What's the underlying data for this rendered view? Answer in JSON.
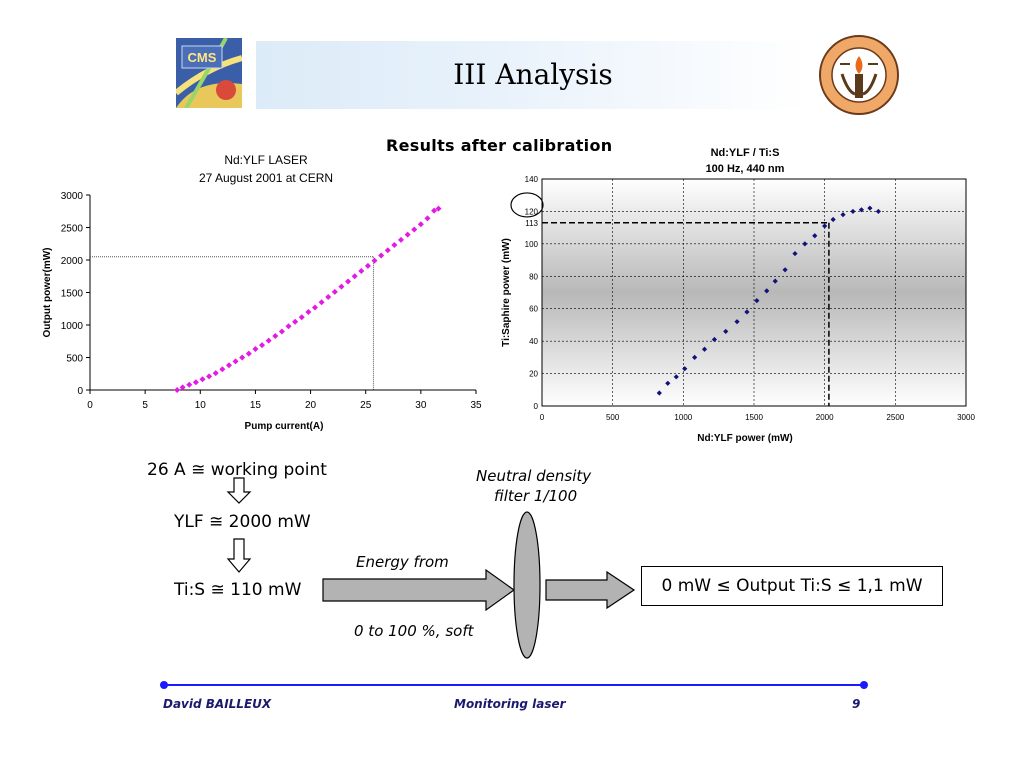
{
  "slide": {
    "title": "III Analysis",
    "subtitle": "Results after calibration",
    "logos": {
      "left": "CMS",
      "right": "Caltech"
    }
  },
  "notes": {
    "working_point": "26 A ≅ working point",
    "ylf_power": "YLF ≅ 2000 mW",
    "tis_power": "Ti:S ≅ 110 mW",
    "energy_from": "Energy from",
    "energy_range": "0 to 100 %, soft",
    "filter_line1": "Neutral density",
    "filter_line2": "filter 1/100",
    "output_range": "0 mW ≤ Output Ti:S ≤ 1,1 mW"
  },
  "footer": {
    "author": "David BAILLEUX",
    "topic": "Monitoring laser",
    "page": "9"
  },
  "colors": {
    "banner": "#dcebf8",
    "series_left": "#e41ae4",
    "series_right": "#12127a",
    "footer_line": "#1a1aff"
  },
  "chart_data": [
    {
      "type": "scatter",
      "title": "Nd:YLF LASER",
      "subtitle": "27 August 2001 at CERN",
      "xlabel": "Pump current(A)",
      "ylabel": "Output power(mW)",
      "xlim": [
        0,
        35
      ],
      "ylim": [
        0,
        3000
      ],
      "xticks": [
        0,
        5,
        10,
        15,
        20,
        25,
        30,
        35
      ],
      "yticks": [
        0,
        500,
        1000,
        1500,
        2000,
        2500,
        3000
      ],
      "grid": false,
      "reference_lines": {
        "x": 25.7,
        "y": 2050
      },
      "series": [
        {
          "marker": "diamond",
          "color": "#e41ae4",
          "x": [
            7.9,
            8.4,
            9.0,
            9.6,
            10.2,
            10.8,
            11.4,
            12.0,
            12.6,
            13.2,
            13.8,
            14.4,
            15.0,
            15.6,
            16.2,
            16.8,
            17.4,
            18.0,
            18.6,
            19.2,
            19.8,
            20.4,
            21.0,
            21.6,
            22.2,
            22.8,
            23.4,
            24.0,
            24.6,
            25.2,
            25.8,
            26.4,
            27.0,
            27.6,
            28.2,
            28.8,
            29.4,
            30.0,
            30.6,
            31.2,
            31.6
          ],
          "y": [
            0,
            40,
            80,
            120,
            165,
            210,
            260,
            320,
            380,
            440,
            500,
            560,
            630,
            690,
            760,
            830,
            900,
            980,
            1050,
            1120,
            1200,
            1270,
            1350,
            1430,
            1510,
            1590,
            1670,
            1750,
            1830,
            1910,
            1990,
            2070,
            2150,
            2230,
            2310,
            2390,
            2470,
            2550,
            2640,
            2760,
            2790
          ]
        }
      ]
    },
    {
      "type": "scatter",
      "title": "Nd:YLF / Ti:S",
      "subtitle": "100 Hz, 440 nm",
      "xlabel": "Nd:YLF power (mW)",
      "ylabel": "Ti:Saphire power (mW)",
      "xlim": [
        0,
        3000
      ],
      "ylim": [
        0,
        140
      ],
      "xticks": [
        0,
        500,
        1000,
        1500,
        2000,
        2500,
        3000
      ],
      "yticks": [
        0,
        20,
        40,
        60,
        80,
        100,
        120,
        140
      ],
      "extra_ytick": 113,
      "grid": true,
      "reference_lines": {
        "x": 2030,
        "y": 113
      },
      "series": [
        {
          "marker": "diamond",
          "color": "#12127a",
          "x": [
            830,
            890,
            950,
            1010,
            1080,
            1150,
            1220,
            1300,
            1380,
            1450,
            1520,
            1590,
            1650,
            1720,
            1790,
            1860,
            1930,
            2000,
            2060,
            2130,
            2200,
            2260,
            2320,
            2380
          ],
          "y": [
            8,
            14,
            18,
            23,
            30,
            35,
            41,
            46,
            52,
            58,
            65,
            71,
            77,
            84,
            94,
            100,
            105,
            111,
            115,
            118,
            120,
            121,
            122,
            120
          ]
        }
      ]
    }
  ]
}
